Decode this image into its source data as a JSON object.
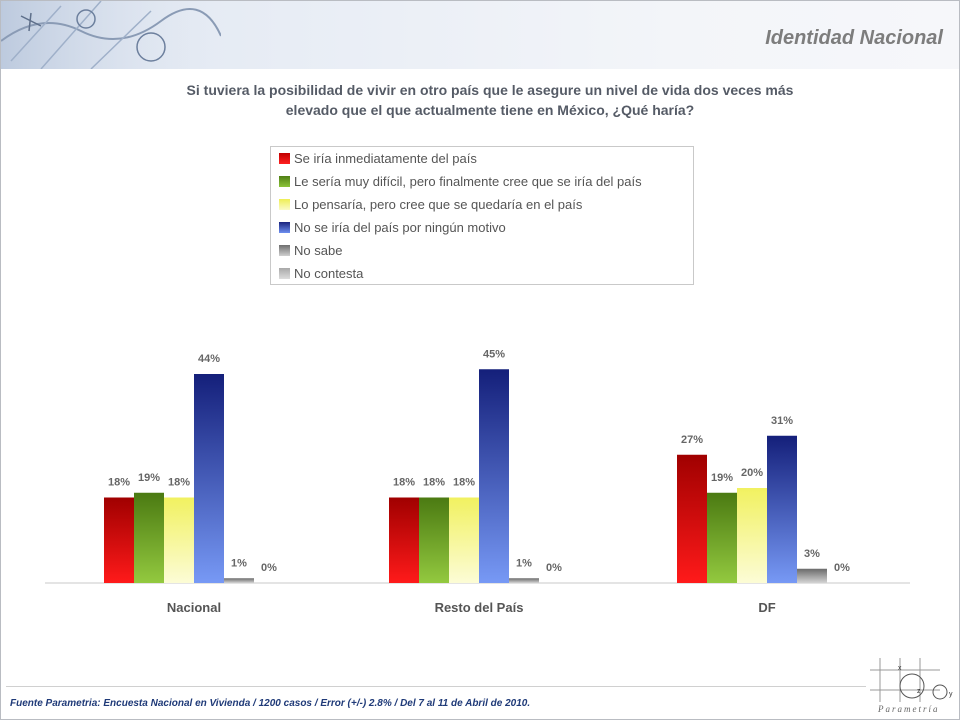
{
  "header": {
    "title": "Identidad Nacional"
  },
  "question": {
    "line1": "Si tuviera la posibilidad de vivir en otro país que le asegure un nivel de vida dos veces más",
    "line2": "elevado que el que actualmente tiene en México, ¿Qué haría?"
  },
  "colors": {
    "red": "#c00000",
    "green": "#5e8f1f",
    "yellow": "#f4f47a",
    "blue": "#23309a",
    "gray_dark": "#8c8c8c",
    "gray_light": "#b4b4b4"
  },
  "chart_data": {
    "type": "bar",
    "categories": [
      "Nacional",
      "Resto del País",
      "DF"
    ],
    "series": [
      {
        "name": "Se iría inmediatamente del país",
        "values": [
          18,
          18,
          27
        ]
      },
      {
        "name": "Le sería muy difícil, pero finalmente cree que se iría del país",
        "values": [
          19,
          18,
          19
        ]
      },
      {
        "name": "Lo pensaría, pero cree que se quedaría en el país",
        "values": [
          18,
          18,
          20
        ]
      },
      {
        "name": "No se iría del país por ningún motivo",
        "values": [
          44,
          45,
          31
        ]
      },
      {
        "name": "No sabe",
        "values": [
          1,
          1,
          3
        ]
      },
      {
        "name": "No contesta",
        "values": [
          0,
          0,
          0
        ]
      }
    ],
    "data_labels": [
      [
        "18%",
        "18%",
        "27%"
      ],
      [
        "19%",
        "18%",
        "19%"
      ],
      [
        "18%",
        "18%",
        "20%"
      ],
      [
        "44%",
        "45%",
        "31%"
      ],
      [
        "1%",
        "1%",
        "3%"
      ],
      [
        "0%",
        "0%",
        "0%"
      ]
    ],
    "ylim": [
      0,
      45
    ],
    "legend_position": "top",
    "grid": false
  },
  "footer": {
    "source": "Fuente Parametria: Encuesta Nacional en Vivienda / 1200 casos / Error (+/-) 2.8% / Del 7 al 11 de Abril de 2010.",
    "logo_text": "Parametría",
    "logo_axis_x": "x",
    "logo_axis_y": "y",
    "logo_axis_z": "z"
  }
}
